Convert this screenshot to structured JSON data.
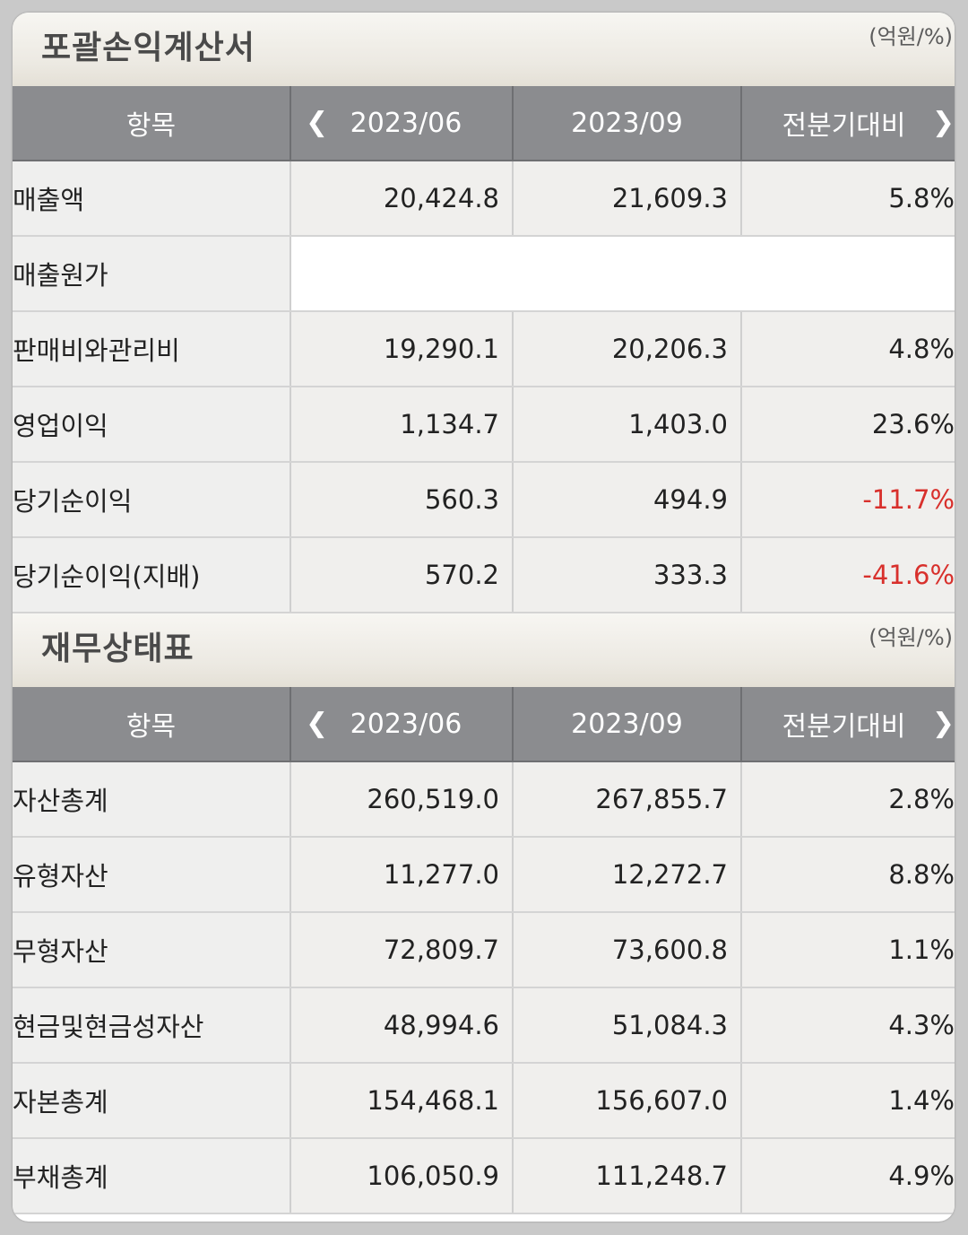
{
  "income": {
    "title": "포괄손익계산서",
    "unit": "(억원/%)",
    "headers": {
      "item": "항목",
      "prev": "2023/06",
      "curr": "2023/09",
      "change": "전분기대비"
    },
    "rows": [
      {
        "label": "매출액",
        "prev": "20,424.8",
        "curr": "21,609.3",
        "change": "5.8%"
      },
      {
        "label": "매출원가",
        "prev": "",
        "curr": "",
        "change": ""
      },
      {
        "label": "판매비와관리비",
        "prev": "19,290.1",
        "curr": "20,206.3",
        "change": "4.8%"
      },
      {
        "label": "영업이익",
        "prev": "1,134.7",
        "curr": "1,403.0",
        "change": "23.6%"
      },
      {
        "label": "당기순이익",
        "prev": "560.3",
        "curr": "494.9",
        "change": "-11.7%"
      },
      {
        "label": "당기순이익(지배)",
        "prev": "570.2",
        "curr": "333.3",
        "change": "-41.6%"
      }
    ]
  },
  "balance": {
    "title": "재무상태표",
    "unit": "(억원/%)",
    "headers": {
      "item": "항목",
      "prev": "2023/06",
      "curr": "2023/09",
      "change": "전분기대비"
    },
    "rows": [
      {
        "label": "자산총계",
        "prev": "260,519.0",
        "curr": "267,855.7",
        "change": "2.8%"
      },
      {
        "label": "유형자산",
        "prev": "11,277.0",
        "curr": "12,272.7",
        "change": "8.8%"
      },
      {
        "label": "무형자산",
        "prev": "72,809.7",
        "curr": "73,600.8",
        "change": "1.1%"
      },
      {
        "label": "현금및현금성자산",
        "prev": "48,994.6",
        "curr": "51,084.3",
        "change": "4.3%"
      },
      {
        "label": "자본총계",
        "prev": "154,468.1",
        "curr": "156,607.0",
        "change": "1.4%"
      },
      {
        "label": "부채총계",
        "prev": "106,050.9",
        "curr": "111,248.7",
        "change": "4.9%"
      }
    ]
  },
  "icons": {
    "prev": "chevron-left-icon",
    "next": "chevron-right-icon"
  },
  "colors": {
    "negative": "#d8302c",
    "header_bg": "#8b8c8f"
  }
}
